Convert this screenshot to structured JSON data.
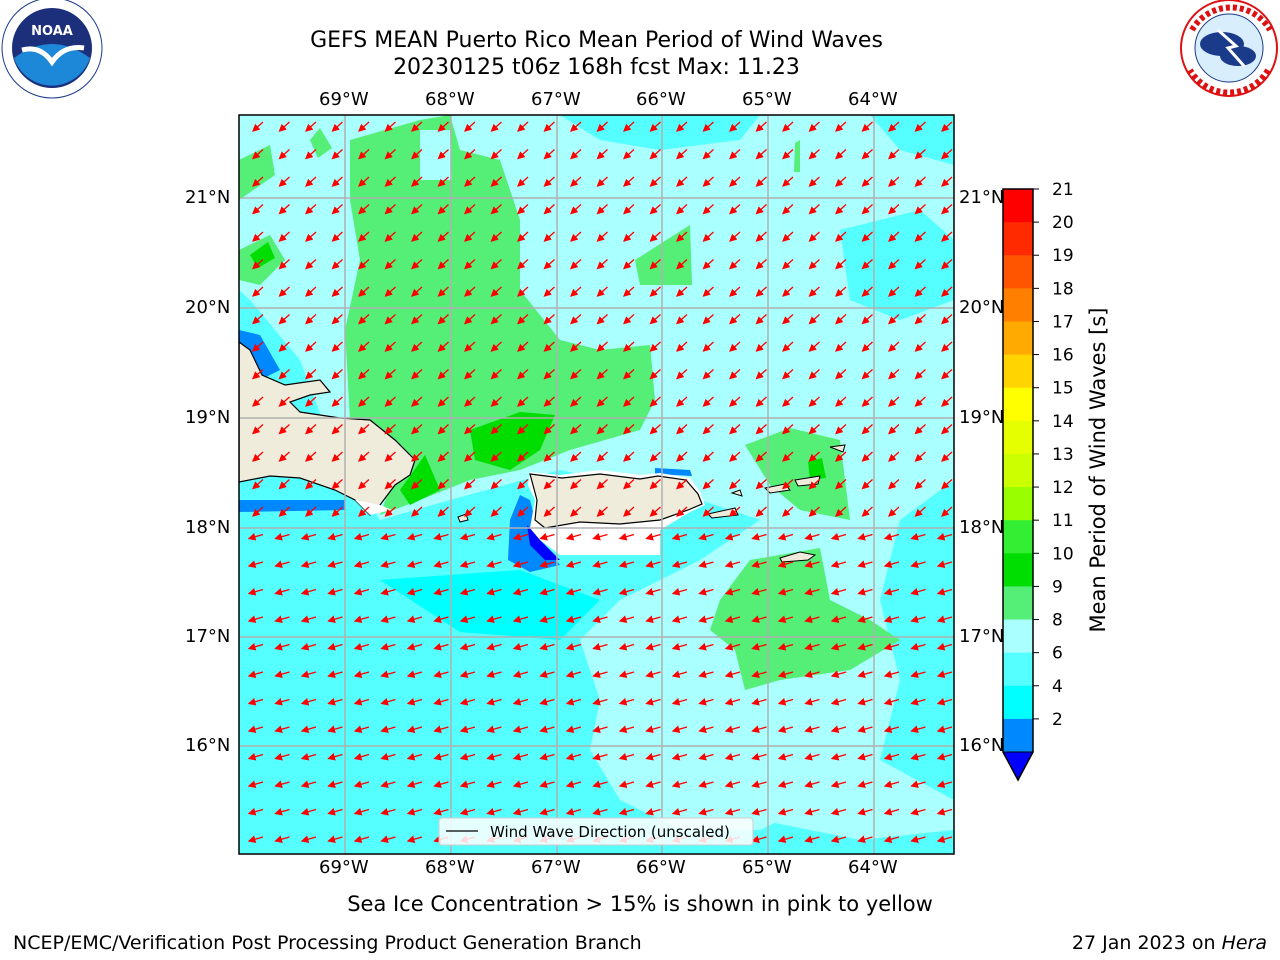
{
  "header": {
    "title_line1": "GEFS MEAN Puerto Rico Mean Period of Wind Waves",
    "title_line2": "20230125 t06z 168h fcst   Max: 11.23"
  },
  "logos": {
    "noaa_text": "NOAA",
    "noaa_ring": "NATIONAL OCEANIC AND ATMOSPHERIC ADMINISTRATION · U.S. DEPARTMENT OF COMMERCE",
    "nws_ring": "NATIONAL WEATHER SERVICE"
  },
  "map": {
    "lon_labels": [
      "69°W",
      "68°W",
      "67°W",
      "66°W",
      "65°W",
      "64°W"
    ],
    "lat_labels": [
      "21°N",
      "20°N",
      "19°N",
      "18°N",
      "17°N",
      "16°N"
    ],
    "legend_label": "Wind Wave Direction (unscaled)",
    "vector_color": "#ff0000",
    "land_color": "#efecdc",
    "ocean_base_color": "#55ffff"
  },
  "colorbar": {
    "label": "Mean Period of Wind Waves [s]",
    "tick_labels": [
      "21",
      "20",
      "19",
      "18",
      "17",
      "16",
      "15",
      "14",
      "13",
      "12",
      "11",
      "10",
      "9",
      "8",
      "6",
      "4",
      "2"
    ],
    "colors_top_to_bottom": [
      "#ff0000",
      "#ff2a00",
      "#ff5500",
      "#ff8000",
      "#ffaa00",
      "#ffd400",
      "#ffff00",
      "#e5ff00",
      "#ccff00",
      "#99ff00",
      "#33ee33",
      "#00dd00",
      "#55ee77",
      "#aaffff",
      "#55ffff",
      "#00ffff",
      "#0088ff"
    ],
    "extend_color": "#0000ff"
  },
  "footer": {
    "ice_note": "Sea Ice Concentration > 15% is shown in pink to yellow",
    "left": "NCEP/EMC/Verification Post Processing Product Generation Branch",
    "right_prefix": "27 Jan 2023 on ",
    "right_host": "Hera"
  }
}
